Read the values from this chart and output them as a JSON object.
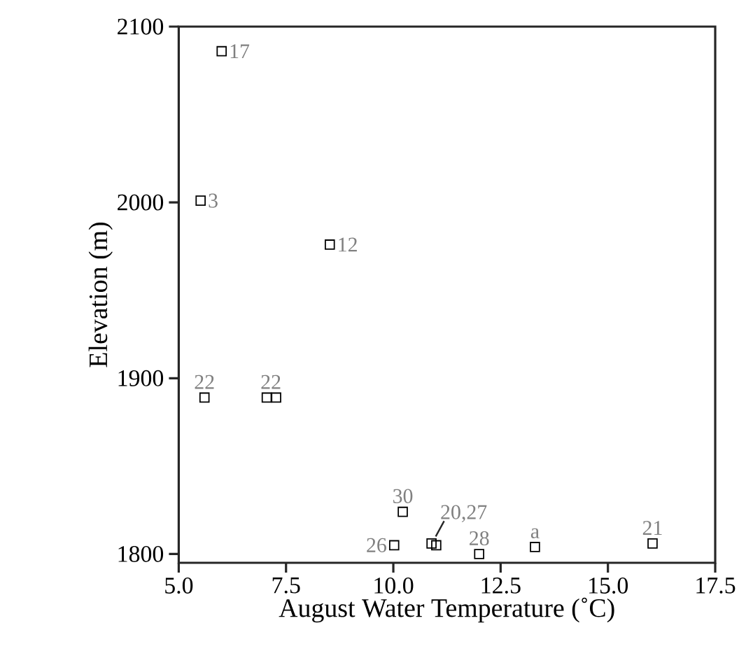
{
  "chart_data": {
    "type": "scatter",
    "xlabel": "August Water Temperature (˚C)",
    "ylabel": "Elevation (m)",
    "x": [
      6.0,
      5.51,
      8.52,
      5.6,
      7.05,
      7.27,
      10.22,
      10.02,
      10.89,
      11.0,
      12.0,
      13.3,
      16.04
    ],
    "values": [
      2086,
      2001,
      1976,
      1889,
      1889,
      1889,
      1824,
      1805,
      1806,
      1805,
      1800,
      1804,
      1806
    ],
    "color": "#000000",
    "marker": "square",
    "xlim": [
      5.0,
      17.5
    ],
    "ylim": [
      1795,
      2100
    ],
    "xticks": [
      {
        "value": 5.0,
        "label": "5.0"
      },
      {
        "value": 7.5,
        "label": "7.5"
      },
      {
        "value": 10.0,
        "label": "10.0"
      },
      {
        "value": 12.5,
        "label": "12.5"
      },
      {
        "value": 15.0,
        "label": "15.0"
      },
      {
        "value": 17.5,
        "label": "17.5"
      }
    ],
    "yticks": [
      1800,
      1900,
      2000,
      2100
    ],
    "grid": false,
    "annotations": [
      {
        "text": "17",
        "x": 6.0,
        "y": 2086
      },
      {
        "text": "3",
        "x": 5.51,
        "y": 2001
      },
      {
        "text": "12",
        "x": 8.52,
        "y": 1976
      },
      {
        "text": "22",
        "x": 5.6,
        "y": 1889
      },
      {
        "text": "22",
        "x": 7.05,
        "y": 1889
      },
      {
        "text": "30",
        "x": 10.22,
        "y": 1824
      },
      {
        "text": "26",
        "x": 10.02,
        "y": 1805
      },
      {
        "text": "20,27",
        "x": 10.89,
        "y": 1806
      },
      {
        "text": "28",
        "x": 12.0,
        "y": 1800
      },
      {
        "text": "a",
        "x": 13.3,
        "y": 1804
      },
      {
        "text": "21",
        "x": 16.04,
        "y": 1806
      }
    ]
  }
}
